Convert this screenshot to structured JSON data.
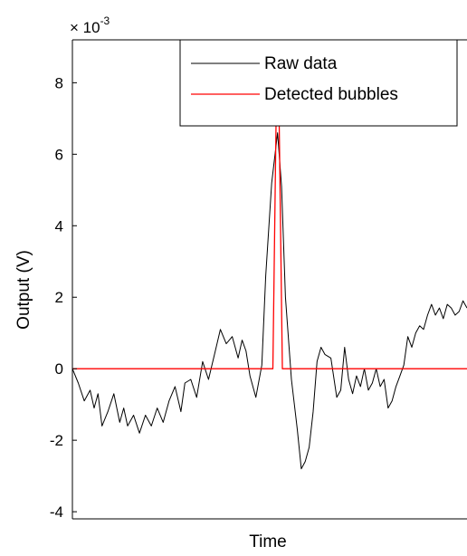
{
  "chart_data": {
    "type": "line",
    "title": "",
    "xlabel": "Time",
    "ylabel": "Output (V)",
    "y_exponent_label": "× 10",
    "y_exponent_power": "-3",
    "ylim": [
      -4.2,
      9.2
    ],
    "yticks": [
      -4,
      -2,
      0,
      2,
      4,
      6,
      8
    ],
    "ytick_labels": [
      "-4",
      "-2",
      "0",
      "2",
      "4",
      "6",
      "8"
    ],
    "xlim": [
      0,
      100
    ],
    "grid": false,
    "legend_position": "top-right",
    "series": [
      {
        "name": "Raw data",
        "color": "#000000",
        "x": [
          0,
          1.5,
          3,
          4.5,
          5.5,
          6.5,
          7.5,
          9,
          10.5,
          12,
          13,
          14,
          15.5,
          17,
          18.5,
          20,
          21.5,
          23,
          24.5,
          26,
          27.5,
          28.5,
          30,
          31.5,
          33,
          34.5,
          36,
          37.5,
          39,
          40.5,
          42,
          43,
          44,
          45,
          46.5,
          48,
          49,
          50.5,
          52,
          53,
          54,
          55.5,
          57,
          58,
          59,
          60,
          61,
          62,
          63,
          64,
          65.5,
          67,
          68,
          69,
          70,
          71,
          72,
          73,
          74,
          75,
          76,
          77,
          78,
          79,
          80,
          81,
          82,
          83,
          84,
          85,
          86,
          87,
          88,
          89,
          90,
          91,
          92,
          93,
          94,
          95,
          96,
          97,
          98,
          99,
          100
        ],
        "values": [
          0,
          -0.4,
          -0.9,
          -0.6,
          -1.1,
          -0.7,
          -1.6,
          -1.2,
          -0.7,
          -1.5,
          -1.1,
          -1.6,
          -1.3,
          -1.8,
          -1.3,
          -1.6,
          -1.1,
          -1.5,
          -0.9,
          -0.5,
          -1.2,
          -0.4,
          -0.3,
          -0.8,
          0.2,
          -0.3,
          0.4,
          1.1,
          0.7,
          0.9,
          0.3,
          0.8,
          0.5,
          -0.2,
          -0.8,
          0.1,
          2.6,
          5.2,
          6.6,
          5.1,
          2.0,
          -0.3,
          -1.7,
          -2.8,
          -2.6,
          -2.2,
          -1.2,
          0.2,
          0.6,
          0.4,
          0.3,
          -0.8,
          -0.6,
          0.6,
          -0.3,
          -0.7,
          -0.2,
          -0.5,
          0.0,
          -0.6,
          -0.4,
          0.0,
          -0.5,
          -0.3,
          -1.1,
          -0.9,
          -0.5,
          -0.2,
          0.1,
          0.9,
          0.6,
          1.0,
          1.2,
          1.1,
          1.5,
          1.8,
          1.5,
          1.7,
          1.4,
          1.8,
          1.7,
          1.5,
          1.6,
          1.9,
          1.7
        ],
        "line_width": 1
      },
      {
        "name": "Detected bubbles",
        "color": "#ff0000",
        "x": [
          0,
          50.8,
          51.6,
          52.4,
          53.2,
          100
        ],
        "values": [
          0,
          0,
          6.85,
          6.85,
          0,
          0
        ],
        "line_width": 1.3
      }
    ]
  }
}
